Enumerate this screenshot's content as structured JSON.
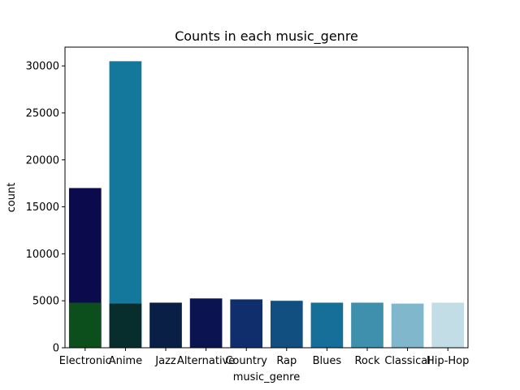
{
  "chart_data": {
    "type": "bar",
    "title": "Counts in each music_genre",
    "xlabel": "music_genre",
    "ylabel": "count",
    "ylim": [
      0,
      32000
    ],
    "yticks": [
      0,
      5000,
      10000,
      15000,
      20000,
      25000,
      30000
    ],
    "categories": [
      "Electronic",
      "Anime",
      "Jazz",
      "Alternative",
      "Country",
      "Rap",
      "Blues",
      "Rock",
      "Classical",
      "Hip-Hop"
    ],
    "layers": [
      {
        "values": [
          17000,
          30500,
          0,
          0,
          0,
          0,
          0,
          0,
          0,
          0
        ],
        "colors": [
          "#0a0a4d",
          "#13789b",
          "#0a0a4d",
          "#0a0a4d",
          "#0a0a4d",
          "#0a0a4d",
          "#0a0a4d",
          "#0a0a4d",
          "#0a0a4d",
          "#0a0a4d"
        ]
      },
      {
        "values": [
          4800,
          4700,
          4800,
          5250,
          5150,
          5000,
          4800,
          4800,
          4700,
          4800
        ],
        "colors": [
          "#0c4e1c",
          "#082d2d",
          "#0a1f46",
          "#0b1350",
          "#112e6c",
          "#114f81",
          "#166f99",
          "#3f90ad",
          "#80b7cd",
          "#c2dde6"
        ]
      }
    ],
    "grid": false,
    "legend": "none"
  }
}
